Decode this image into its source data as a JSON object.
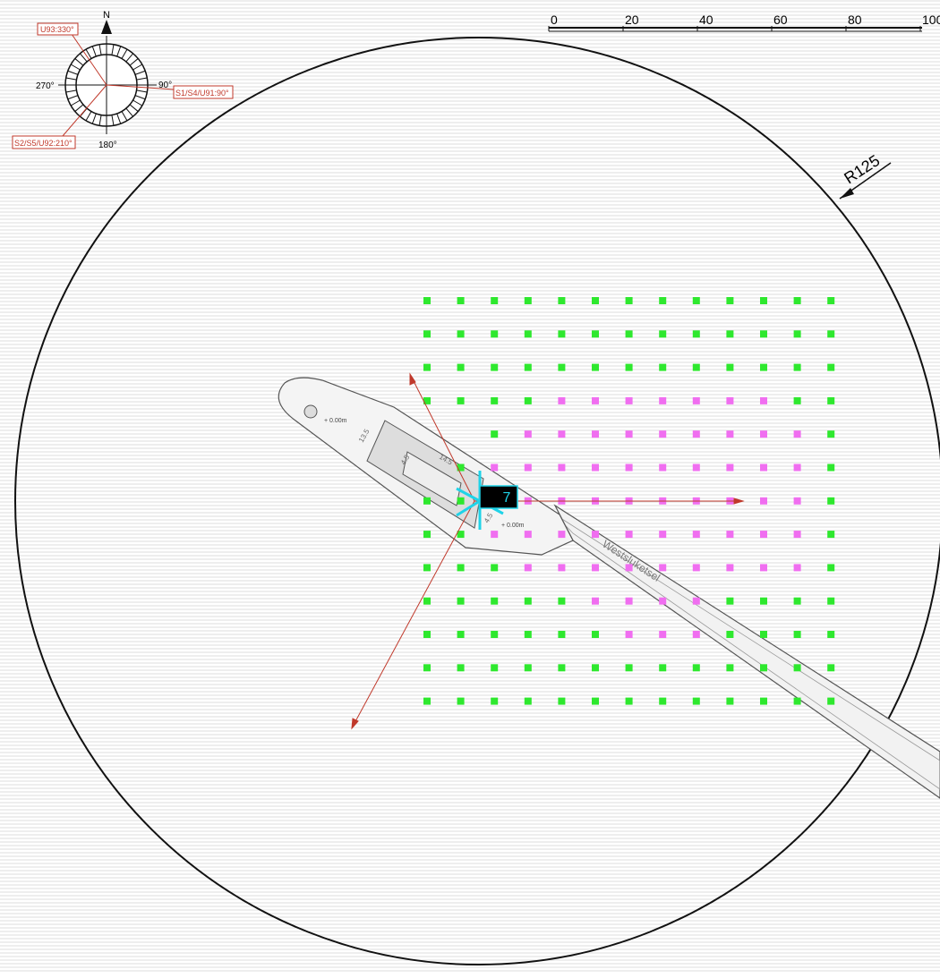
{
  "scale_bar": {
    "labels": [
      "0",
      "20",
      "40",
      "60",
      "80",
      "100"
    ]
  },
  "compass": {
    "north": "N",
    "west": "270°",
    "east": "90°",
    "south": "180°"
  },
  "direction_tags": {
    "u93": "U93:330°",
    "east": "S1/S4/U91:90°",
    "southwest": "S2/S5/U92:210°"
  },
  "radius_label": "R125",
  "levels": [
    "+ 0.00m",
    "+ 0.00m"
  ],
  "dimensions": [
    "13.5",
    "14.5",
    "4.5",
    "4.5"
  ],
  "channel_label": "Westsluketsel",
  "marker_label": "7"
}
